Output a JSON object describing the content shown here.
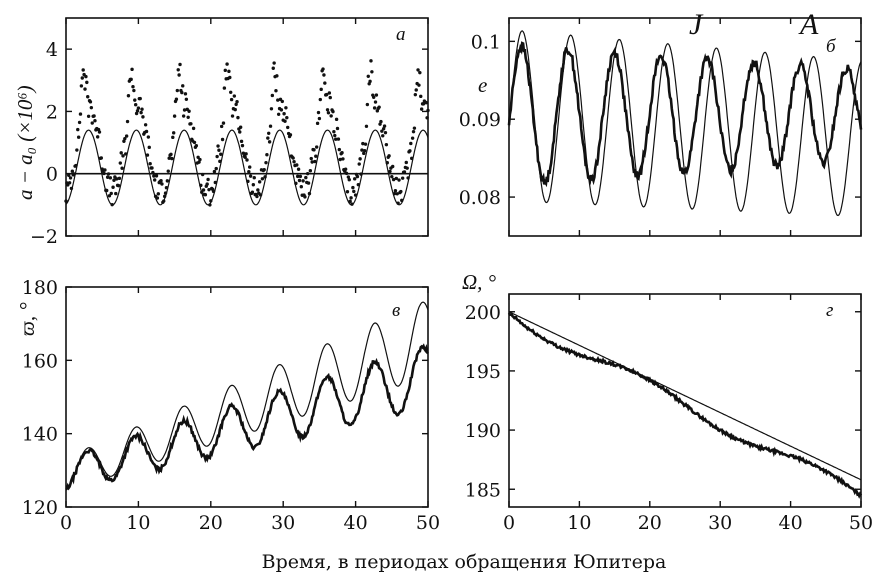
{
  "corner_labels": {
    "left": "J",
    "right": "A"
  },
  "x_axis_title": "Время, в  периодах обращения Юпитера",
  "chart_data": [
    {
      "panel": "а",
      "type": "line",
      "ylabel": "a − a₀ (×10⁶)",
      "xlim": [
        0,
        50
      ],
      "ylim": [
        -2,
        5
      ],
      "yticks": [
        "−2",
        "0",
        "2",
        "4"
      ],
      "xticks": [],
      "zero_line": true,
      "series": [
        {
          "style": "thin",
          "period": 6.6,
          "amp": 1.2,
          "offset": 0.2,
          "phase": 1.4
        },
        {
          "style": "dots",
          "period": 6.6,
          "base": 0.8,
          "amp": 1.4,
          "spike": 1.6,
          "phase": 1.4
        }
      ]
    },
    {
      "panel": "б",
      "type": "line",
      "ylabel": "e",
      "xlim": [
        0,
        50
      ],
      "ylim": [
        0.075,
        0.103
      ],
      "yticks": [
        "0.08",
        "0.09",
        "0.1"
      ],
      "xticks": [],
      "series": [
        {
          "style": "thin",
          "period": 6.9,
          "amp": 0.011,
          "offset": 0.0905,
          "phase": 0.5,
          "drift": -6e-05
        },
        {
          "style": "thick",
          "period": 6.6,
          "amp": 0.009,
          "offset": 0.0905,
          "phase": 0.4,
          "damp": 0.35
        }
      ]
    },
    {
      "panel": "в",
      "type": "line",
      "ylabel": "ϖ, °",
      "xlim": [
        0,
        50
      ],
      "ylim": [
        120,
        180
      ],
      "yticks": [
        "120",
        "140",
        "160",
        "180"
      ],
      "xticks": [
        "0",
        "10",
        "20",
        "30",
        "40",
        "50"
      ],
      "series": [
        {
          "style": "thin",
          "start": 129,
          "slope": 0.74,
          "period": 6.6,
          "amp": 4.5,
          "growth": 0.12
        },
        {
          "style": "thick",
          "start": 129,
          "slope": 0.53,
          "period": 6.6,
          "amp": 4.5,
          "growth": 0.08
        }
      ]
    },
    {
      "panel": "г",
      "type": "line",
      "ylabel": "Ω, °",
      "xlim": [
        0,
        50
      ],
      "ylim": [
        183.5,
        201.5
      ],
      "yticks": [
        "185",
        "190",
        "195",
        "200"
      ],
      "xticks": [
        "0",
        "10",
        "20",
        "30",
        "40",
        "50"
      ],
      "series": [
        {
          "style": "thin",
          "points": [
            [
              0,
              200
            ],
            [
              50,
              185.8
            ]
          ]
        },
        {
          "style": "thick",
          "start": 199.8,
          "end": 184.4
        }
      ]
    }
  ]
}
